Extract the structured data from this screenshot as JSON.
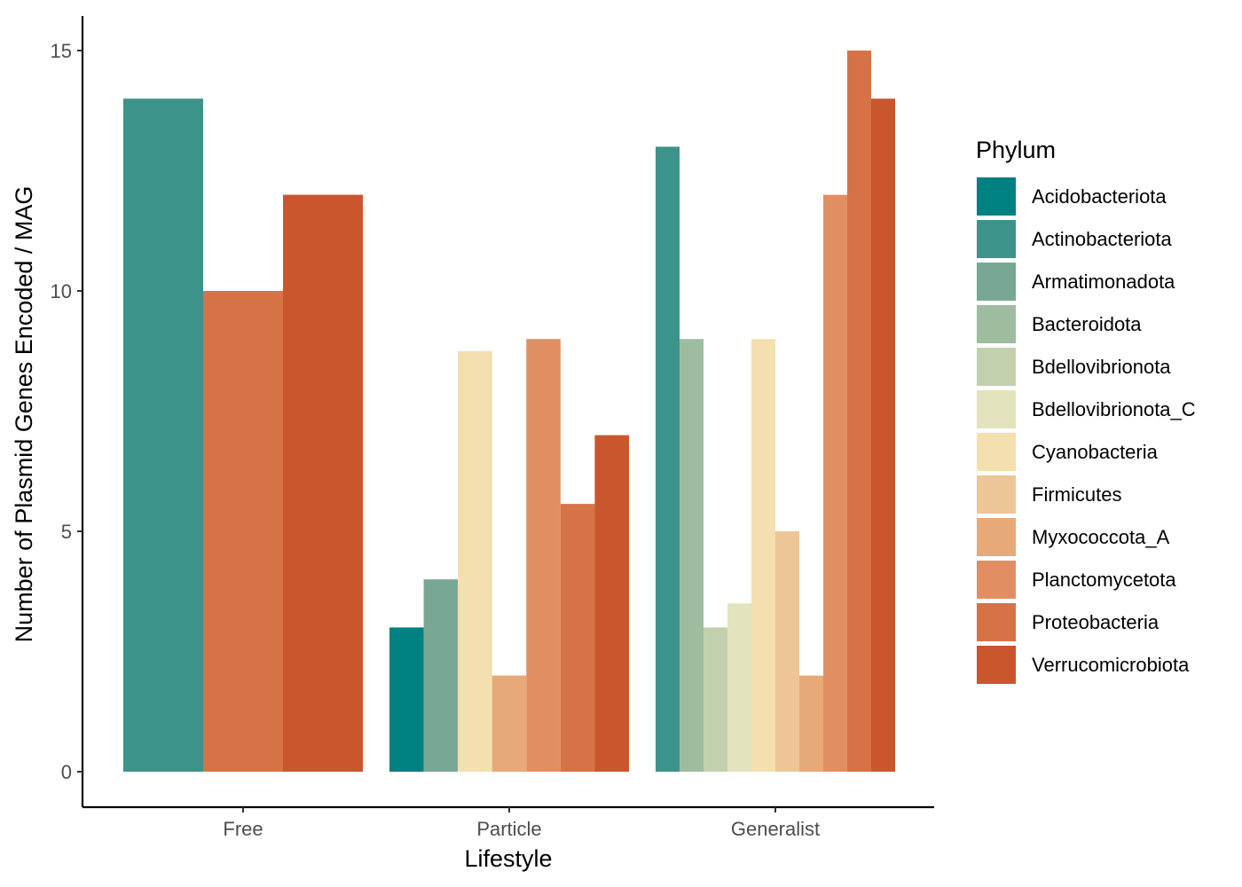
{
  "chart_data": {
    "type": "bar",
    "xlabel": "Lifestyle",
    "ylabel": "Number of Plasmid Genes Encoded / MAG",
    "ylim": [
      0,
      15.8
    ],
    "yticks": [
      0,
      5,
      10,
      15
    ],
    "grid": false,
    "legend_title": "Phylum",
    "legend_position": "right",
    "phyla": [
      {
        "name": "Acidobacteriota",
        "color": "#008080"
      },
      {
        "name": "Actinobacteriota",
        "color": "#3d938a"
      },
      {
        "name": "Armatimonadota",
        "color": "#78a894"
      },
      {
        "name": "Bacteroidota",
        "color": "#9dbca0"
      },
      {
        "name": "Bdellovibrionota",
        "color": "#c3d0ae"
      },
      {
        "name": "Bdellovibrionota_C",
        "color": "#e3e3bd"
      },
      {
        "name": "Cyanobacteria",
        "color": "#f3e0ae"
      },
      {
        "name": "Firmicutes",
        "color": "#eec597"
      },
      {
        "name": "Myxococcota_A",
        "color": "#e8a978"
      },
      {
        "name": "Planctomycetota",
        "color": "#e18f62"
      },
      {
        "name": "Proteobacteria",
        "color": "#d57347"
      },
      {
        "name": "Verrucomicrobiota",
        "color": "#c9562c"
      }
    ],
    "categories": [
      {
        "name": "Free",
        "bars": [
          {
            "phylum": "Actinobacteriota",
            "value": 14
          },
          {
            "phylum": "Proteobacteria",
            "value": 10
          },
          {
            "phylum": "Verrucomicrobiota",
            "value": 12
          }
        ]
      },
      {
        "name": "Particle",
        "bars": [
          {
            "phylum": "Acidobacteriota",
            "value": 3
          },
          {
            "phylum": "Armatimonadota",
            "value": 4
          },
          {
            "phylum": "Cyanobacteria",
            "value": 8.75
          },
          {
            "phylum": "Myxococcota_A",
            "value": 2
          },
          {
            "phylum": "Planctomycetota",
            "value": 9
          },
          {
            "phylum": "Proteobacteria",
            "value": 5.57
          },
          {
            "phylum": "Verrucomicrobiota",
            "value": 7
          }
        ]
      },
      {
        "name": "Generalist",
        "bars": [
          {
            "phylum": "Actinobacteriota",
            "value": 13
          },
          {
            "phylum": "Bacteroidota",
            "value": 9
          },
          {
            "phylum": "Bdellovibrionota",
            "value": 3
          },
          {
            "phylum": "Bdellovibrionota_C",
            "value": 3.5
          },
          {
            "phylum": "Cyanobacteria",
            "value": 9
          },
          {
            "phylum": "Firmicutes",
            "value": 5
          },
          {
            "phylum": "Myxococcota_A",
            "value": 2
          },
          {
            "phylum": "Planctomycetota",
            "value": 12
          },
          {
            "phylum": "Proteobacteria",
            "value": 15
          },
          {
            "phylum": "Verrucomicrobiota",
            "value": 14
          }
        ]
      }
    ]
  }
}
